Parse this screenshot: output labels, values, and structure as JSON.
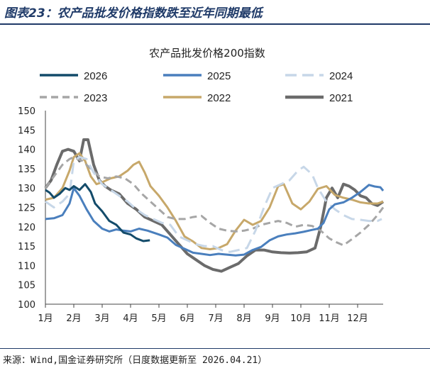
{
  "figure": {
    "title": "图表23：农产品批发价格指数跌至近年同期最低",
    "source": "来源：Wind,国金证券研究所（日度数据更新至 2026.04.21）"
  },
  "colors": {
    "accent": "#1f3a68",
    "axis": "#444444"
  },
  "chart_data": {
    "type": "line",
    "title": "农产品批发价格200指数",
    "xlabel": "",
    "ylabel": "",
    "x_categories": [
      "1月",
      "2月",
      "3月",
      "4月",
      "5月",
      "6月",
      "7月",
      "8月",
      "9月",
      "10月",
      "11月",
      "12月"
    ],
    "xlim": [
      1,
      12.9
    ],
    "ylim": [
      100,
      150
    ],
    "y_ticks": [
      100,
      105,
      110,
      115,
      120,
      125,
      130,
      135,
      140,
      145,
      150
    ],
    "legend_position": "top",
    "series": [
      {
        "name": "2026",
        "color": "#134b6a",
        "dash": "",
        "width": 3,
        "points": [
          [
            1,
            129.5
          ],
          [
            1.15,
            128.8
          ],
          [
            1.3,
            127.5
          ],
          [
            1.5,
            128.5
          ],
          [
            1.7,
            130
          ],
          [
            1.85,
            129.5
          ],
          [
            2,
            130.5
          ],
          [
            2.2,
            129.5
          ],
          [
            2.4,
            131
          ],
          [
            2.6,
            129
          ],
          [
            2.75,
            126
          ],
          [
            3,
            124
          ],
          [
            3.25,
            121.5
          ],
          [
            3.5,
            120.5
          ],
          [
            3.75,
            118.5
          ],
          [
            4,
            118
          ],
          [
            4.2,
            117
          ],
          [
            4.45,
            116.3
          ],
          [
            4.68,
            116.5
          ]
        ]
      },
      {
        "name": "2025",
        "color": "#4a7fbd",
        "dash": "",
        "width": 3,
        "points": [
          [
            1,
            122
          ],
          [
            1.3,
            122.2
          ],
          [
            1.6,
            123
          ],
          [
            1.85,
            126
          ],
          [
            2,
            130
          ],
          [
            2.2,
            128
          ],
          [
            2.45,
            124.5
          ],
          [
            2.7,
            121.5
          ],
          [
            3,
            119.5
          ],
          [
            3.25,
            118.8
          ],
          [
            3.5,
            119.3
          ],
          [
            3.75,
            119
          ],
          [
            4,
            118.8
          ],
          [
            4.3,
            119.5
          ],
          [
            4.6,
            119
          ],
          [
            5,
            118
          ],
          [
            5.3,
            117.2
          ],
          [
            5.6,
            115.3
          ],
          [
            5.9,
            114.3
          ],
          [
            6.2,
            113.3
          ],
          [
            6.5,
            113
          ],
          [
            6.8,
            112.7
          ],
          [
            7.1,
            113
          ],
          [
            7.4,
            112.8
          ],
          [
            7.7,
            112.6
          ],
          [
            8,
            112.8
          ],
          [
            8.3,
            114
          ],
          [
            8.6,
            114.8
          ],
          [
            8.9,
            116.5
          ],
          [
            9.2,
            117.5
          ],
          [
            9.5,
            118
          ],
          [
            9.8,
            118.3
          ],
          [
            10.1,
            118.7
          ],
          [
            10.4,
            119.2
          ],
          [
            10.6,
            119.5
          ],
          [
            10.8,
            121
          ],
          [
            11,
            124.5
          ],
          [
            11.2,
            125.8
          ],
          [
            11.5,
            126.3
          ],
          [
            11.8,
            127.5
          ],
          [
            12.1,
            129
          ],
          [
            12.4,
            130.8
          ],
          [
            12.6,
            130.4
          ],
          [
            12.8,
            130.2
          ],
          [
            12.9,
            129.3
          ]
        ]
      },
      {
        "name": "2024",
        "color": "#c7d7e8",
        "dash": "16 8",
        "width": 3,
        "points": [
          [
            1,
            126.5
          ],
          [
            1.3,
            125
          ],
          [
            1.6,
            126.5
          ],
          [
            1.85,
            128.5
          ],
          [
            2,
            137
          ],
          [
            2.2,
            138
          ],
          [
            2.45,
            137.5
          ],
          [
            2.7,
            134
          ],
          [
            3,
            131
          ],
          [
            3.3,
            129.5
          ],
          [
            3.6,
            128
          ],
          [
            3.9,
            126.5
          ],
          [
            4.2,
            124.5
          ],
          [
            4.5,
            123
          ],
          [
            4.8,
            122
          ],
          [
            5.1,
            121
          ],
          [
            5.4,
            120.5
          ],
          [
            5.7,
            117.5
          ],
          [
            6,
            116.5
          ],
          [
            6.3,
            115.5
          ],
          [
            6.6,
            115
          ],
          [
            6.9,
            115
          ],
          [
            7.2,
            114
          ],
          [
            7.5,
            113.5
          ],
          [
            7.8,
            114
          ],
          [
            8.1,
            114.5
          ],
          [
            8.4,
            119
          ],
          [
            8.7,
            125
          ],
          [
            9,
            130
          ],
          [
            9.3,
            131
          ],
          [
            9.6,
            132
          ],
          [
            9.9,
            134.5
          ],
          [
            10.1,
            135.5
          ],
          [
            10.4,
            133.5
          ],
          [
            10.6,
            130
          ],
          [
            10.9,
            126.5
          ],
          [
            11.2,
            124.5
          ],
          [
            11.5,
            123
          ],
          [
            11.8,
            122
          ],
          [
            12.1,
            121.8
          ],
          [
            12.4,
            121.5
          ],
          [
            12.7,
            121.5
          ],
          [
            12.85,
            122
          ]
        ]
      },
      {
        "name": "2023",
        "color": "#a6a6a6",
        "dash": "10 6",
        "width": 3,
        "points": [
          [
            1,
            130
          ],
          [
            1.3,
            133
          ],
          [
            1.6,
            136
          ],
          [
            1.85,
            137.5
          ],
          [
            2,
            138
          ],
          [
            2.3,
            137
          ],
          [
            2.6,
            135
          ],
          [
            2.9,
            133
          ],
          [
            3.2,
            132.5
          ],
          [
            3.5,
            133
          ],
          [
            3.8,
            132.5
          ],
          [
            4.1,
            131
          ],
          [
            4.4,
            128.5
          ],
          [
            4.7,
            126.5
          ],
          [
            5,
            124.5
          ],
          [
            5.3,
            122.5
          ],
          [
            5.6,
            122
          ],
          [
            5.9,
            122
          ],
          [
            6.2,
            122.5
          ],
          [
            6.5,
            122.8
          ],
          [
            6.8,
            121
          ],
          [
            7.1,
            119.5
          ],
          [
            7.4,
            119
          ],
          [
            7.7,
            118.8
          ],
          [
            8,
            119
          ],
          [
            8.3,
            119.5
          ],
          [
            8.6,
            120.5
          ],
          [
            8.9,
            121
          ],
          [
            9.2,
            121.5
          ],
          [
            9.5,
            121
          ],
          [
            9.8,
            120
          ],
          [
            10.1,
            120.5
          ],
          [
            10.4,
            120.2
          ],
          [
            10.7,
            119
          ],
          [
            11,
            117
          ],
          [
            11.25,
            116
          ],
          [
            11.5,
            115.2
          ],
          [
            11.8,
            116.8
          ],
          [
            12.1,
            118.5
          ],
          [
            12.4,
            120.5
          ],
          [
            12.7,
            123
          ],
          [
            12.9,
            125
          ]
        ]
      },
      {
        "name": "2022",
        "color": "#c7a86a",
        "dash": "",
        "width": 3,
        "points": [
          [
            1,
            127
          ],
          [
            1.3,
            127.5
          ],
          [
            1.6,
            130
          ],
          [
            1.85,
            134.5
          ],
          [
            2,
            138
          ],
          [
            2.2,
            139
          ],
          [
            2.4,
            137
          ],
          [
            2.6,
            133
          ],
          [
            2.8,
            131
          ],
          [
            3,
            131.5
          ],
          [
            3.3,
            132.5
          ],
          [
            3.6,
            133
          ],
          [
            3.9,
            134.5
          ],
          [
            4.1,
            136
          ],
          [
            4.3,
            136.8
          ],
          [
            4.5,
            134
          ],
          [
            4.7,
            130.5
          ],
          [
            5,
            128
          ],
          [
            5.3,
            125
          ],
          [
            5.6,
            121.5
          ],
          [
            5.9,
            117.5
          ],
          [
            6.2,
            116.2
          ],
          [
            6.5,
            114.5
          ],
          [
            6.8,
            114.2
          ],
          [
            7.1,
            114.5
          ],
          [
            7.4,
            115.5
          ],
          [
            7.7,
            119
          ],
          [
            8,
            121.8
          ],
          [
            8.3,
            120.5
          ],
          [
            8.6,
            121.5
          ],
          [
            8.9,
            125
          ],
          [
            9.2,
            130.5
          ],
          [
            9.4,
            131
          ],
          [
            9.7,
            126
          ],
          [
            10,
            124.5
          ],
          [
            10.3,
            126.5
          ],
          [
            10.6,
            129.8
          ],
          [
            10.9,
            130.5
          ],
          [
            11.2,
            128.2
          ],
          [
            11.5,
            127.5
          ],
          [
            11.8,
            127
          ],
          [
            12.1,
            126.3
          ],
          [
            12.4,
            126
          ],
          [
            12.7,
            126
          ],
          [
            12.9,
            126.5
          ]
        ]
      },
      {
        "name": "2021",
        "color": "#6b6b6b",
        "dash": "",
        "width": 4,
        "points": [
          [
            1,
            130
          ],
          [
            1.2,
            132
          ],
          [
            1.4,
            136
          ],
          [
            1.6,
            139.5
          ],
          [
            1.8,
            140
          ],
          [
            2,
            139.5
          ],
          [
            2.2,
            137
          ],
          [
            2.35,
            142.5
          ],
          [
            2.5,
            142.5
          ],
          [
            2.7,
            136
          ],
          [
            2.9,
            132
          ],
          [
            3.1,
            130.5
          ],
          [
            3.3,
            129.5
          ],
          [
            3.6,
            128.5
          ],
          [
            3.9,
            126
          ],
          [
            4.2,
            124.5
          ],
          [
            4.5,
            122.5
          ],
          [
            4.8,
            121.5
          ],
          [
            5.1,
            120.5
          ],
          [
            5.4,
            118
          ],
          [
            5.7,
            115.5
          ],
          [
            6,
            113
          ],
          [
            6.3,
            111.5
          ],
          [
            6.6,
            110
          ],
          [
            6.9,
            109
          ],
          [
            7.2,
            108.5
          ],
          [
            7.5,
            109.5
          ],
          [
            7.8,
            110.5
          ],
          [
            8.1,
            112.5
          ],
          [
            8.4,
            114
          ],
          [
            8.7,
            114
          ],
          [
            9,
            113.5
          ],
          [
            9.3,
            113.3
          ],
          [
            9.6,
            113.2
          ],
          [
            9.9,
            113.3
          ],
          [
            10.2,
            113.5
          ],
          [
            10.5,
            114.5
          ],
          [
            10.7,
            120
          ],
          [
            10.9,
            127.5
          ],
          [
            11.1,
            130
          ],
          [
            11.3,
            127.5
          ],
          [
            11.5,
            131
          ],
          [
            11.7,
            130.5
          ],
          [
            11.9,
            129.5
          ],
          [
            12.1,
            128
          ],
          [
            12.3,
            127.5
          ],
          [
            12.5,
            126
          ],
          [
            12.7,
            125.5
          ],
          [
            12.9,
            126.5
          ]
        ]
      }
    ]
  }
}
